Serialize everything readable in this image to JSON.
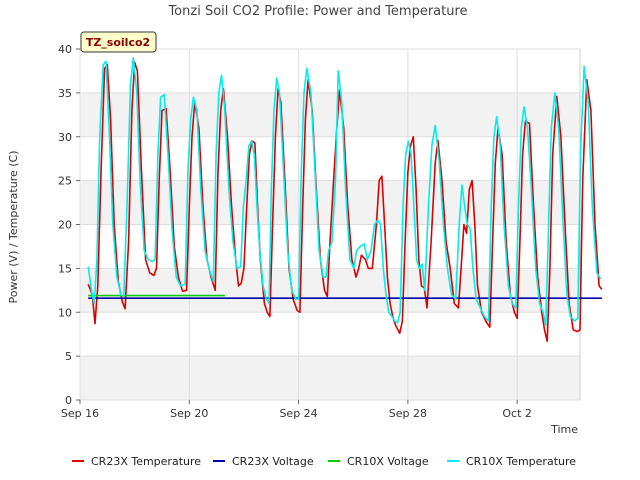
{
  "chart_data": {
    "type": "line",
    "title": "Tonzi Soil CO2 Profile: Power and Temperature",
    "xlabel": "Time",
    "ylabel": "Power (V) / Temperature (C)",
    "badge": "TZ_soilco2",
    "xlim": [
      0,
      18.3
    ],
    "ylim": [
      0,
      40
    ],
    "yticks": [
      0,
      5,
      10,
      15,
      20,
      25,
      30,
      35,
      40
    ],
    "xticks": [
      {
        "day": 0,
        "label": "Sep 16"
      },
      {
        "day": 4,
        "label": "Sep 20"
      },
      {
        "day": 8,
        "label": "Sep 24"
      },
      {
        "day": 12,
        "label": "Sep 28"
      },
      {
        "day": 16,
        "label": "Oct 2"
      }
    ],
    "grid": true,
    "legend_position": "bottom",
    "series": [
      {
        "name": "CR23X Temperature",
        "color": "#dd0000",
        "points": [
          [
            0.3,
            13.2
          ],
          [
            0.45,
            12
          ],
          [
            0.55,
            8.7
          ],
          [
            0.65,
            13
          ],
          [
            0.78,
            27
          ],
          [
            0.9,
            37.8
          ],
          [
            1.0,
            38.2
          ],
          [
            1.12,
            32
          ],
          [
            1.25,
            20
          ],
          [
            1.4,
            13.5
          ],
          [
            1.55,
            11.2
          ],
          [
            1.65,
            10.4
          ],
          [
            1.78,
            18
          ],
          [
            1.9,
            33
          ],
          [
            2.0,
            38.5
          ],
          [
            2.1,
            37.5
          ],
          [
            2.25,
            26
          ],
          [
            2.4,
            16
          ],
          [
            2.55,
            14.5
          ],
          [
            2.7,
            14.2
          ],
          [
            2.8,
            15
          ],
          [
            2.9,
            25
          ],
          [
            3.0,
            33
          ],
          [
            3.15,
            33.2
          ],
          [
            3.3,
            26
          ],
          [
            3.45,
            17.5
          ],
          [
            3.6,
            14
          ],
          [
            3.75,
            12.4
          ],
          [
            3.9,
            12.5
          ],
          [
            4.0,
            22
          ],
          [
            4.1,
            30
          ],
          [
            4.2,
            34
          ],
          [
            4.35,
            31
          ],
          [
            4.5,
            22
          ],
          [
            4.65,
            16
          ],
          [
            4.8,
            14
          ],
          [
            4.95,
            12.5
          ],
          [
            5.05,
            26
          ],
          [
            5.15,
            33
          ],
          [
            5.25,
            35.5
          ],
          [
            5.4,
            30
          ],
          [
            5.55,
            22
          ],
          [
            5.7,
            16
          ],
          [
            5.8,
            13
          ],
          [
            5.9,
            13.3
          ],
          [
            6.0,
            15
          ],
          [
            6.1,
            22
          ],
          [
            6.2,
            28
          ],
          [
            6.3,
            29.5
          ],
          [
            6.4,
            29.3
          ],
          [
            6.5,
            22
          ],
          [
            6.6,
            16
          ],
          [
            6.75,
            11
          ],
          [
            6.85,
            10
          ],
          [
            6.95,
            9.5
          ],
          [
            7.05,
            20
          ],
          [
            7.15,
            30
          ],
          [
            7.25,
            35.5
          ],
          [
            7.35,
            34
          ],
          [
            7.5,
            25
          ],
          [
            7.65,
            15
          ],
          [
            7.8,
            11.5
          ],
          [
            7.95,
            10.2
          ],
          [
            8.05,
            10
          ],
          [
            8.15,
            22
          ],
          [
            8.25,
            32
          ],
          [
            8.35,
            36.5
          ],
          [
            8.5,
            33
          ],
          [
            8.65,
            24
          ],
          [
            8.8,
            16
          ],
          [
            8.95,
            12.5
          ],
          [
            9.05,
            11.8
          ],
          [
            9.15,
            18
          ],
          [
            9.3,
            26
          ],
          [
            9.4,
            31
          ],
          [
            9.5,
            35.3
          ],
          [
            9.65,
            31
          ],
          [
            9.8,
            22
          ],
          [
            9.95,
            16
          ],
          [
            10.1,
            14
          ],
          [
            10.2,
            15
          ],
          [
            10.3,
            16.5
          ],
          [
            10.45,
            16
          ],
          [
            10.55,
            15
          ],
          [
            10.7,
            15
          ],
          [
            10.85,
            20
          ],
          [
            10.95,
            25
          ],
          [
            11.05,
            25.5
          ],
          [
            11.15,
            20
          ],
          [
            11.25,
            14
          ],
          [
            11.35,
            11
          ],
          [
            11.45,
            9.5
          ],
          [
            11.55,
            8.5
          ],
          [
            11.7,
            7.6
          ],
          [
            11.8,
            9
          ],
          [
            11.9,
            18
          ],
          [
            12.0,
            26
          ],
          [
            12.1,
            29
          ],
          [
            12.2,
            30
          ],
          [
            12.3,
            24
          ],
          [
            12.4,
            16
          ],
          [
            12.5,
            13
          ],
          [
            12.6,
            12.8
          ],
          [
            12.7,
            10.5
          ],
          [
            12.85,
            18
          ],
          [
            13.0,
            27
          ],
          [
            13.1,
            29.6
          ],
          [
            13.25,
            25
          ],
          [
            13.4,
            18
          ],
          [
            13.55,
            15
          ],
          [
            13.7,
            11
          ],
          [
            13.85,
            10.5
          ],
          [
            13.95,
            15
          ],
          [
            14.05,
            20
          ],
          [
            14.15,
            19
          ],
          [
            14.25,
            24
          ],
          [
            14.35,
            25
          ],
          [
            14.45,
            20
          ],
          [
            14.55,
            13
          ],
          [
            14.7,
            10
          ],
          [
            14.85,
            9
          ],
          [
            15.0,
            8.3
          ],
          [
            15.1,
            18
          ],
          [
            15.2,
            27
          ],
          [
            15.3,
            31
          ],
          [
            15.45,
            28
          ],
          [
            15.6,
            18
          ],
          [
            15.75,
            12
          ],
          [
            15.9,
            10
          ],
          [
            16.0,
            9.3
          ],
          [
            16.1,
            18
          ],
          [
            16.2,
            28
          ],
          [
            16.3,
            31.8
          ],
          [
            16.45,
            31.5
          ],
          [
            16.6,
            22
          ],
          [
            16.75,
            14
          ],
          [
            16.9,
            10
          ],
          [
            17.0,
            8
          ],
          [
            17.1,
            6.7
          ],
          [
            17.2,
            15
          ],
          [
            17.3,
            28
          ],
          [
            17.45,
            34.6
          ],
          [
            17.6,
            30
          ],
          [
            17.75,
            20
          ],
          [
            17.9,
            11
          ],
          [
            18.05,
            8
          ],
          [
            18.2,
            7.8
          ],
          [
            18.3,
            8
          ],
          [
            18.4,
            25
          ],
          [
            18.55,
            36.5
          ],
          [
            18.7,
            33
          ],
          [
            18.85,
            20
          ],
          [
            19.0,
            13
          ],
          [
            19.1,
            12.6
          ]
        ]
      },
      {
        "name": "CR23X Voltage",
        "color": "#0000aa",
        "points": [
          [
            0.3,
            11.6
          ],
          [
            19.1,
            11.6
          ]
        ]
      },
      {
        "name": "CR10X Voltage",
        "color": "#00cc00",
        "points": [
          [
            0.3,
            11.9
          ],
          [
            5.3,
            11.9
          ]
        ]
      },
      {
        "name": "CR10X Temperature",
        "color": "#00eeee",
        "points": [
          [
            0.3,
            15.2
          ],
          [
            0.42,
            12.5
          ],
          [
            0.52,
            11
          ],
          [
            0.62,
            16
          ],
          [
            0.72,
            30
          ],
          [
            0.85,
            38.2
          ],
          [
            0.95,
            38.6
          ],
          [
            1.08,
            30
          ],
          [
            1.2,
            20
          ],
          [
            1.35,
            14
          ],
          [
            1.5,
            12
          ],
          [
            1.6,
            11.8
          ],
          [
            1.72,
            22
          ],
          [
            1.85,
            36
          ],
          [
            1.95,
            39
          ],
          [
            2.08,
            35
          ],
          [
            2.2,
            25
          ],
          [
            2.35,
            17
          ],
          [
            2.5,
            16
          ],
          [
            2.65,
            15.8
          ],
          [
            2.75,
            16
          ],
          [
            2.85,
            28
          ],
          [
            2.95,
            34.5
          ],
          [
            3.08,
            34.8
          ],
          [
            3.22,
            28
          ],
          [
            3.38,
            19
          ],
          [
            3.52,
            14
          ],
          [
            3.68,
            13
          ],
          [
            3.85,
            13.2
          ],
          [
            3.95,
            26
          ],
          [
            4.05,
            32
          ],
          [
            4.15,
            34.5
          ],
          [
            4.28,
            33
          ],
          [
            4.42,
            24
          ],
          [
            4.58,
            17
          ],
          [
            4.72,
            15
          ],
          [
            4.88,
            13.5
          ],
          [
            4.98,
            28
          ],
          [
            5.08,
            35
          ],
          [
            5.18,
            37
          ],
          [
            5.3,
            33
          ],
          [
            5.45,
            24
          ],
          [
            5.6,
            18
          ],
          [
            5.75,
            15
          ],
          [
            5.88,
            15.2
          ],
          [
            5.98,
            22
          ],
          [
            6.08,
            25
          ],
          [
            6.18,
            29
          ],
          [
            6.28,
            29.5
          ],
          [
            6.38,
            28
          ],
          [
            6.48,
            22
          ],
          [
            6.58,
            17
          ],
          [
            6.7,
            13
          ],
          [
            6.82,
            11.5
          ],
          [
            6.92,
            11
          ],
          [
            7.0,
            24
          ],
          [
            7.1,
            33
          ],
          [
            7.2,
            36.7
          ],
          [
            7.3,
            35
          ],
          [
            7.45,
            26
          ],
          [
            7.6,
            17
          ],
          [
            7.75,
            12.5
          ],
          [
            7.9,
            11.5
          ],
          [
            8.0,
            11.5
          ],
          [
            8.1,
            26
          ],
          [
            8.2,
            35
          ],
          [
            8.3,
            37.8
          ],
          [
            8.45,
            35
          ],
          [
            8.6,
            26
          ],
          [
            8.75,
            17
          ],
          [
            8.9,
            14
          ],
          [
            9.0,
            14
          ],
          [
            9.1,
            17
          ],
          [
            9.22,
            18
          ],
          [
            9.35,
            25
          ],
          [
            9.45,
            37.5
          ],
          [
            9.58,
            34
          ],
          [
            9.72,
            24
          ],
          [
            9.88,
            16
          ],
          [
            10.02,
            15
          ],
          [
            10.12,
            17
          ],
          [
            10.25,
            17.5
          ],
          [
            10.4,
            17.8
          ],
          [
            10.52,
            16
          ],
          [
            10.65,
            17
          ],
          [
            10.78,
            20
          ],
          [
            10.9,
            20.5
          ],
          [
            11.0,
            20
          ],
          [
            11.1,
            15
          ],
          [
            11.2,
            12
          ],
          [
            11.3,
            10
          ],
          [
            11.42,
            9.5
          ],
          [
            11.52,
            9
          ],
          [
            11.62,
            8.8
          ],
          [
            11.72,
            10
          ],
          [
            11.82,
            22
          ],
          [
            11.92,
            28
          ],
          [
            12.02,
            29.5
          ],
          [
            12.12,
            28
          ],
          [
            12.22,
            22
          ],
          [
            12.32,
            16
          ],
          [
            12.42,
            15
          ],
          [
            12.52,
            15.5
          ],
          [
            12.62,
            12.5
          ],
          [
            12.75,
            22
          ],
          [
            12.88,
            29
          ],
          [
            13.0,
            31.3
          ],
          [
            13.15,
            27
          ],
          [
            13.3,
            20
          ],
          [
            13.45,
            15
          ],
          [
            13.6,
            12
          ],
          [
            13.75,
            11.5
          ],
          [
            13.88,
            20
          ],
          [
            13.98,
            24.5
          ],
          [
            14.08,
            22
          ],
          [
            14.18,
            20
          ],
          [
            14.28,
            19.5
          ],
          [
            14.38,
            15
          ],
          [
            14.5,
            11.5
          ],
          [
            14.65,
            10.5
          ],
          [
            14.8,
            9.5
          ],
          [
            14.95,
            9
          ],
          [
            15.05,
            22
          ],
          [
            15.15,
            30
          ],
          [
            15.25,
            32.3
          ],
          [
            15.38,
            29
          ],
          [
            15.52,
            20
          ],
          [
            15.68,
            13
          ],
          [
            15.82,
            11
          ],
          [
            15.95,
            10.5
          ],
          [
            16.05,
            22
          ],
          [
            16.15,
            31
          ],
          [
            16.25,
            33.4
          ],
          [
            16.38,
            31
          ],
          [
            16.52,
            24
          ],
          [
            16.68,
            15
          ],
          [
            16.82,
            11
          ],
          [
            16.95,
            10
          ],
          [
            17.05,
            8.5
          ],
          [
            17.15,
            20
          ],
          [
            17.25,
            31
          ],
          [
            17.38,
            35
          ],
          [
            17.52,
            31
          ],
          [
            17.68,
            20
          ],
          [
            17.82,
            12
          ],
          [
            17.95,
            9.5
          ],
          [
            18.1,
            9
          ],
          [
            18.22,
            9.3
          ],
          [
            18.32,
            28
          ],
          [
            18.45,
            38
          ],
          [
            18.6,
            34
          ],
          [
            18.75,
            22
          ],
          [
            18.92,
            14.5
          ],
          [
            19.05,
            13.8
          ]
        ]
      }
    ]
  }
}
